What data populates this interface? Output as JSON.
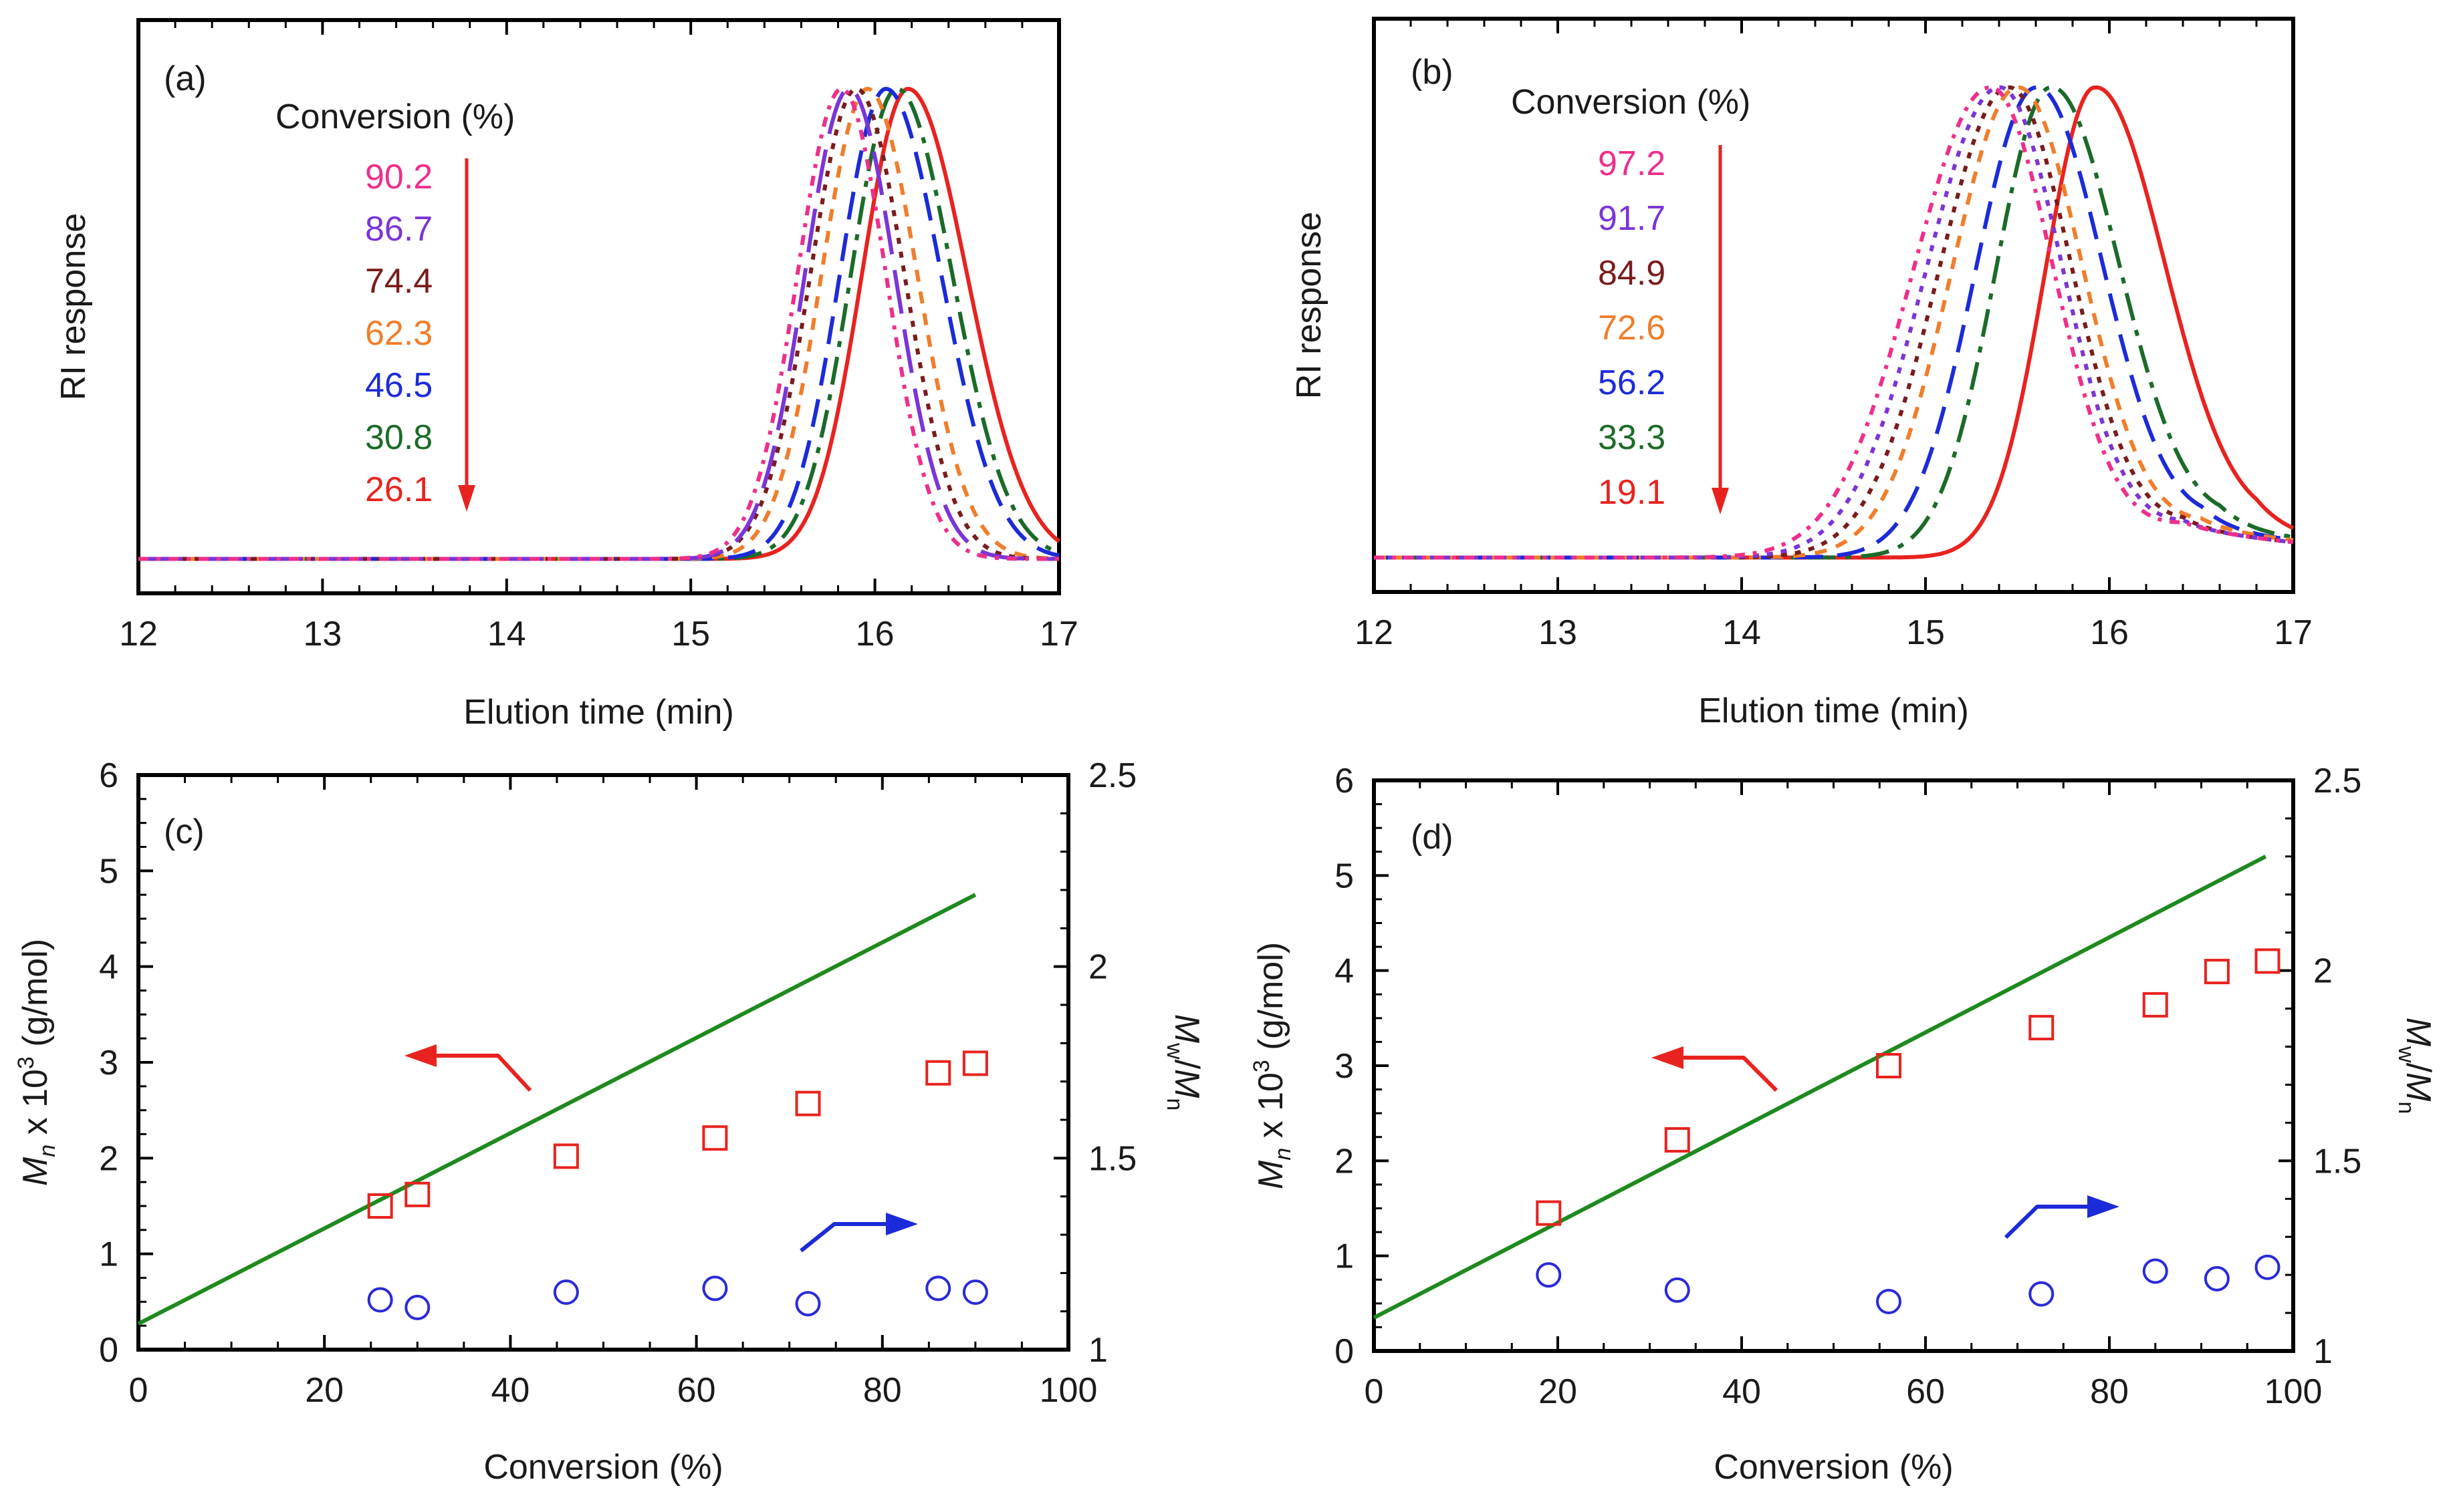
{
  "figure": {
    "panels": [
      "a",
      "b",
      "c",
      "d"
    ]
  },
  "chart_data": [
    {
      "id": "a",
      "type": "line",
      "panel_label": "(a)",
      "xlabel": "Elution time (min)",
      "ylabel": "RI response",
      "xlim": [
        12,
        17
      ],
      "ylim": [
        0,
        1.0
      ],
      "xticks": [
        "12",
        "13",
        "14",
        "15",
        "16",
        "17"
      ],
      "legend_title": "Conversion (%)",
      "legend_placement": "top-left",
      "legend_arrow_color": "#e8231f",
      "series": [
        {
          "name": "90.2",
          "color": "#ee2f8a",
          "peak": 15.82,
          "sigma_left": 0.24,
          "sigma_right": 0.24,
          "tail_amp": 0.0,
          "tail_x": 17.0,
          "tail_decay": 0.3,
          "dash": "5,4,2,4"
        },
        {
          "name": "86.7",
          "color": "#7b35d6",
          "peak": 15.86,
          "sigma_left": 0.24,
          "sigma_right": 0.25,
          "tail_amp": 0.0,
          "tail_x": 17.0,
          "tail_decay": 0.3,
          "dash": "22,8"
        },
        {
          "name": "74.4",
          "color": "#7a1c1c",
          "peak": 15.9,
          "sigma_left": 0.25,
          "sigma_right": 0.26,
          "tail_amp": 0.0,
          "tail_x": 17.0,
          "tail_decay": 0.3,
          "dash": "3,4"
        },
        {
          "name": "62.3",
          "color": "#f07d2b",
          "peak": 15.96,
          "sigma_left": 0.25,
          "sigma_right": 0.27,
          "tail_amp": 0.0,
          "tail_x": 17.0,
          "tail_decay": 0.3,
          "dash": "6,5"
        },
        {
          "name": "46.5",
          "color": "#1c2bd8",
          "peak": 16.06,
          "sigma_left": 0.25,
          "sigma_right": 0.3,
          "tail_amp": 0.0,
          "tail_x": 17.0,
          "tail_decay": 0.3,
          "dash": "14,7"
        },
        {
          "name": "30.8",
          "color": "#1b6b28",
          "peak": 16.12,
          "sigma_left": 0.25,
          "sigma_right": 0.3,
          "tail_amp": 0.0,
          "tail_x": 17.0,
          "tail_decay": 0.3,
          "dash": "14,5,3,5"
        },
        {
          "name": "26.1",
          "color": "#e8231f",
          "peak": 16.18,
          "sigma_left": 0.25,
          "sigma_right": 0.32,
          "tail_amp": 0.0,
          "tail_x": 17.0,
          "tail_decay": 0.3,
          "dash": ""
        }
      ]
    },
    {
      "id": "b",
      "type": "line",
      "panel_label": "(b)",
      "xlabel": "Elution time (min)",
      "ylabel": "RI response",
      "xlim": [
        12,
        17
      ],
      "ylim": [
        0,
        1.0
      ],
      "xticks": [
        "12",
        "13",
        "14",
        "15",
        "16",
        "17"
      ],
      "legend_title": "Conversion (%)",
      "legend_placement": "top-left",
      "legend_arrow_color": "#e8231f",
      "series": [
        {
          "name": "97.2",
          "color": "#ee2f8a",
          "peak": 15.35,
          "sigma_left": 0.42,
          "sigma_right": 0.34,
          "tail_amp": 0.07,
          "tail_x": 16.4,
          "tail_decay": 0.8,
          "dash": "5,4,2,4"
        },
        {
          "name": "91.7",
          "color": "#7b35d6",
          "peak": 15.4,
          "sigma_left": 0.4,
          "sigma_right": 0.34,
          "tail_amp": 0.07,
          "tail_x": 16.4,
          "tail_decay": 0.8,
          "dash": "3,4"
        },
        {
          "name": "84.9",
          "color": "#7a1c1c",
          "peak": 15.45,
          "sigma_left": 0.38,
          "sigma_right": 0.34,
          "tail_amp": 0.07,
          "tail_x": 16.4,
          "tail_decay": 0.8,
          "dash": "3,4"
        },
        {
          "name": "72.6",
          "color": "#f07d2b",
          "peak": 15.5,
          "sigma_left": 0.36,
          "sigma_right": 0.35,
          "tail_amp": 0.07,
          "tail_x": 16.5,
          "tail_decay": 0.8,
          "dash": "6,5"
        },
        {
          "name": "56.2",
          "color": "#1c2bd8",
          "peak": 15.6,
          "sigma_left": 0.33,
          "sigma_right": 0.36,
          "tail_amp": 0.07,
          "tail_x": 16.5,
          "tail_decay": 0.8,
          "dash": "14,7"
        },
        {
          "name": "33.3",
          "color": "#1b6b28",
          "peak": 15.68,
          "sigma_left": 0.3,
          "sigma_right": 0.37,
          "tail_amp": 0.07,
          "tail_x": 16.6,
          "tail_decay": 0.8,
          "dash": "14,5,3,5"
        },
        {
          "name": "19.1",
          "color": "#e8231f",
          "peak": 15.92,
          "sigma_left": 0.27,
          "sigma_right": 0.38,
          "tail_amp": 0.06,
          "tail_x": 16.8,
          "tail_decay": 0.8,
          "dash": ""
        }
      ]
    },
    {
      "id": "c",
      "type": "scatter",
      "panel_label": "(c)",
      "xlabel": "Conversion (%)",
      "ylabel_symbol": "M",
      "ylabel_symbol_sub": "n",
      "ylabel_mid": " x 10",
      "ylabel_sup": "3",
      "ylabel_units": " (g/mol)",
      "y2label_symbol1": "M",
      "y2label_sub1": "w",
      "y2label_slash": "/",
      "y2label_symbol2": "M",
      "y2label_sub2": "n",
      "xlim": [
        0,
        100
      ],
      "ylim": [
        0,
        6
      ],
      "y2lim": [
        1,
        2.5
      ],
      "xticks": [
        "0",
        "20",
        "40",
        "60",
        "80",
        "100"
      ],
      "yticks": [
        "0",
        "1",
        "2",
        "3",
        "4",
        "5",
        "6"
      ],
      "y2ticks": [
        "1",
        "1.5",
        "2",
        "2.5"
      ],
      "theory_line": {
        "color": "#1e8a1e",
        "x": [
          0,
          90
        ],
        "y": [
          0.27,
          4.75
        ]
      },
      "mn": {
        "color": "#e8231f",
        "x": [
          26,
          30,
          46,
          62,
          72,
          86,
          90
        ],
        "y": [
          1.5,
          1.62,
          2.02,
          2.21,
          2.57,
          2.89,
          2.99
        ]
      },
      "pdi": {
        "color": "#2b2bd8",
        "x": [
          26,
          30,
          46,
          62,
          72,
          86,
          90
        ],
        "y": [
          1.13,
          1.11,
          1.15,
          1.16,
          1.12,
          1.16,
          1.15
        ]
      },
      "arrow_left_color": "#e8231f",
      "arrow_right_color": "#1c2bd8"
    },
    {
      "id": "d",
      "type": "scatter",
      "panel_label": "(d)",
      "xlabel": "Conversion (%)",
      "ylabel_symbol": "M",
      "ylabel_symbol_sub": "n",
      "ylabel_mid": " x 10",
      "ylabel_sup": "3",
      "ylabel_units": " (g/mol)",
      "y2label_symbol1": "M",
      "y2label_sub1": "w",
      "y2label_slash": "/",
      "y2label_symbol2": "M",
      "y2label_sub2": "n",
      "xlim": [
        0,
        100
      ],
      "ylim": [
        0,
        6
      ],
      "y2lim": [
        1,
        2.5
      ],
      "xticks": [
        "0",
        "20",
        "40",
        "60",
        "80",
        "100"
      ],
      "yticks": [
        "0",
        "1",
        "2",
        "3",
        "4",
        "5",
        "6"
      ],
      "y2ticks": [
        "1",
        "1.5",
        "2",
        "2.5"
      ],
      "theory_line": {
        "color": "#1e8a1e",
        "x": [
          0,
          97
        ],
        "y": [
          0.35,
          5.2
        ]
      },
      "mn": {
        "color": "#e8231f",
        "x": [
          19,
          33,
          56,
          72.6,
          85,
          91.7,
          97.2
        ],
        "y": [
          1.45,
          2.22,
          3.0,
          3.4,
          3.64,
          3.99,
          4.1
        ]
      },
      "pdi": {
        "color": "#2b2bd8",
        "x": [
          19,
          33,
          56,
          72.6,
          85,
          91.7,
          97.2
        ],
        "y": [
          1.2,
          1.16,
          1.13,
          1.15,
          1.21,
          1.19,
          1.22
        ]
      },
      "arrow_left_color": "#e8231f",
      "arrow_right_color": "#1c2bd8"
    }
  ]
}
